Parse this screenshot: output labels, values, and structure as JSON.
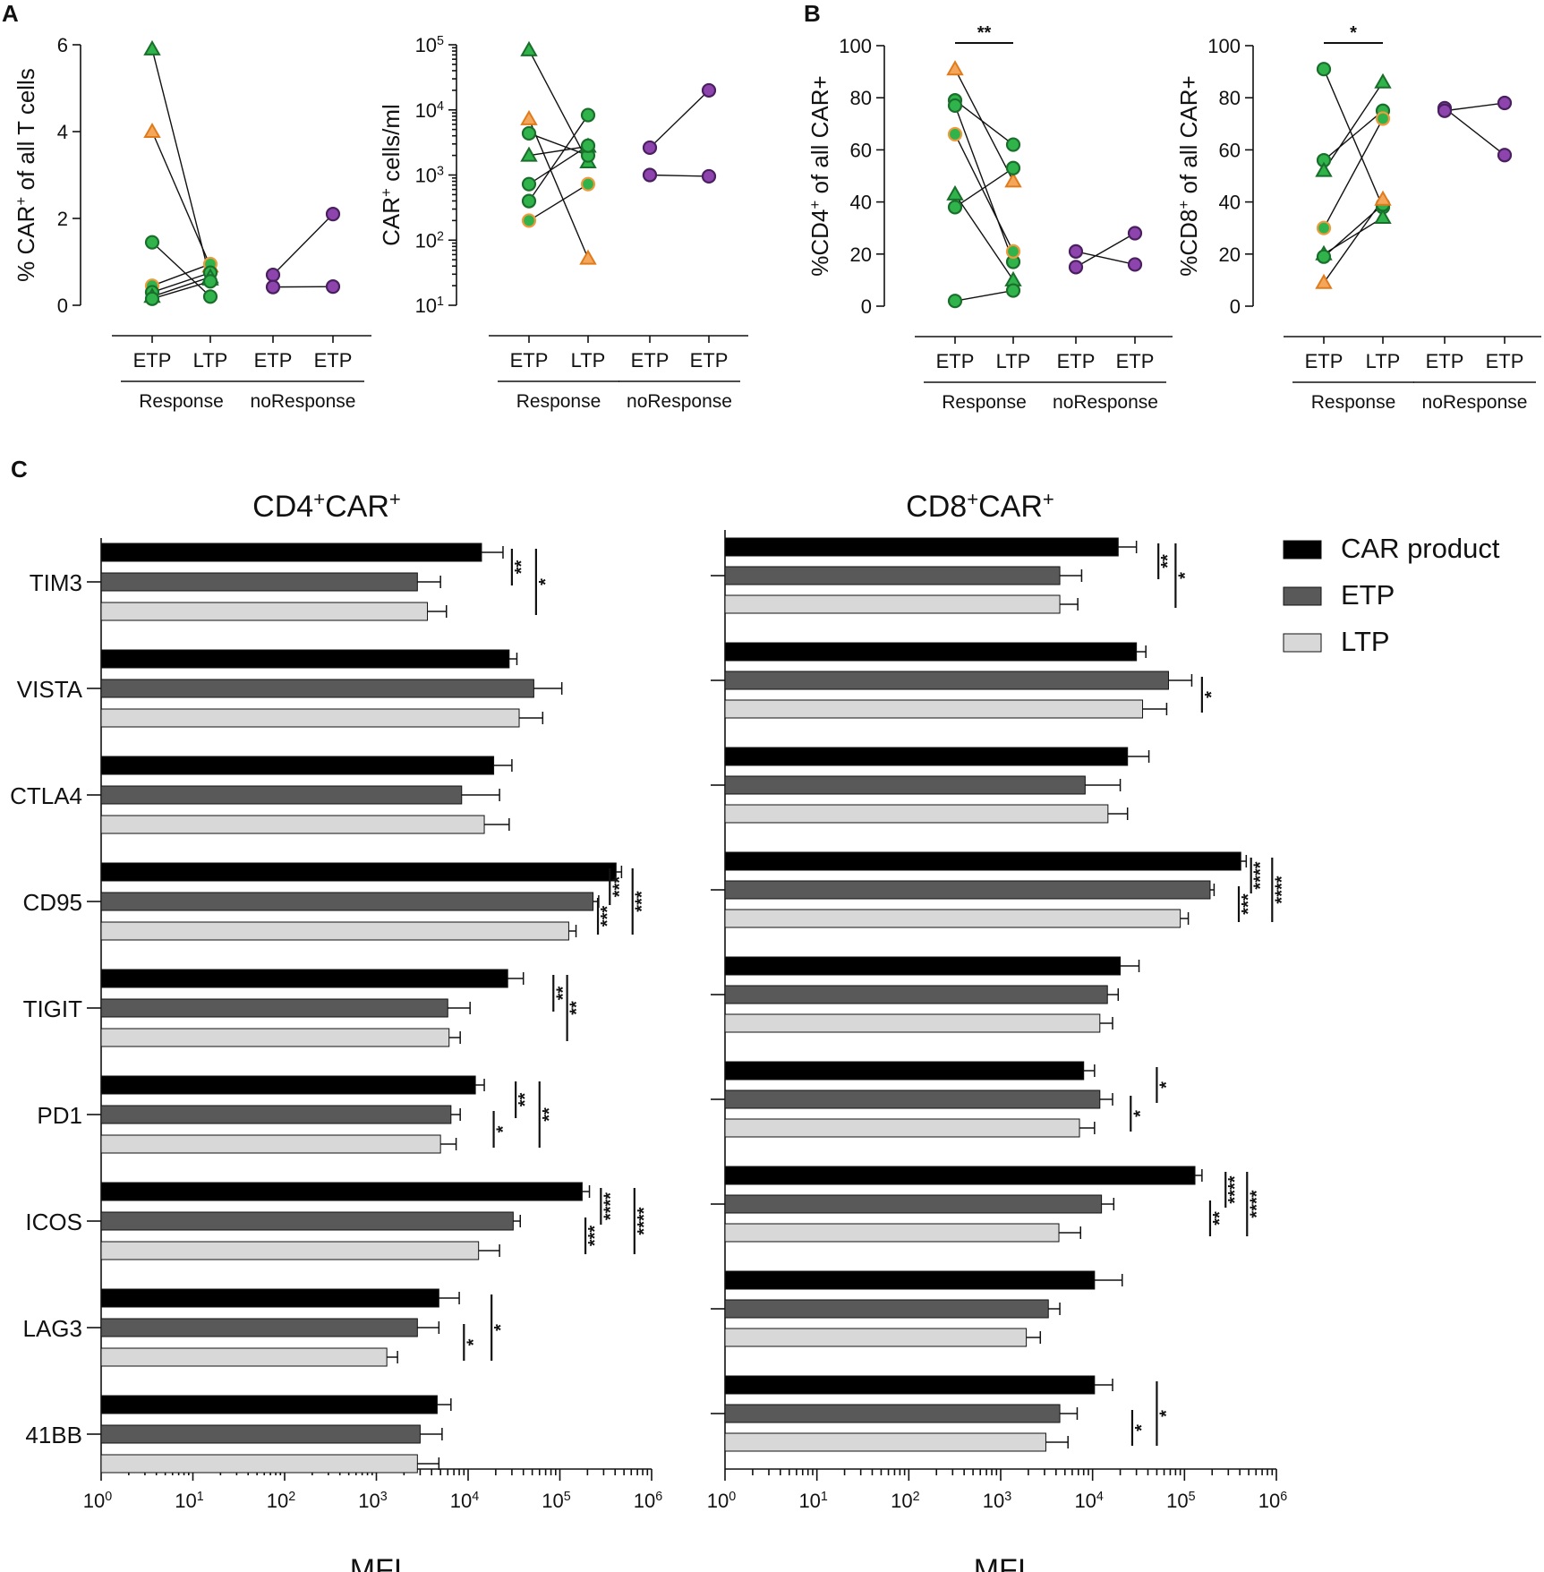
{
  "panels": {
    "a": "A",
    "b": "B",
    "c": "C"
  },
  "chart_data": [
    {
      "type": "scatter",
      "id": "A1",
      "ylabel": "% CAR+ of all T cells",
      "ylabel_parts": [
        "% CAR",
        "+",
        " of all T cells"
      ],
      "ylim": [
        0,
        6
      ],
      "yticks": [
        0,
        2,
        4,
        6
      ],
      "yscale": "linear",
      "categories": [
        "ETP",
        "LTP",
        "ETP",
        "ETP"
      ],
      "groups": [
        {
          "name": "Response",
          "cats": [
            0,
            1
          ]
        },
        {
          "name": "noResponse",
          "cats": [
            2,
            3
          ]
        }
      ],
      "pairs": [
        {
          "cats": [
            0,
            1
          ],
          "values": [
            5.9,
            0.6
          ],
          "marker": "triangle",
          "fill": "#2fb34a",
          "edge": "#1a6e2b"
        },
        {
          "cats": [
            0,
            1
          ],
          "values": [
            4.0,
            0.9
          ],
          "marker": "triangle",
          "fill": "#f4a65a",
          "edge": "#e07b1c"
        },
        {
          "cats": [
            0,
            1
          ],
          "values": [
            1.45,
            0.2
          ],
          "marker": "circle",
          "fill": "#2fb34a",
          "edge": "#1a6e2b"
        },
        {
          "cats": [
            0,
            1
          ],
          "values": [
            0.45,
            0.95
          ],
          "marker": "circle",
          "fill": "#2fb34a",
          "edge": "#f09a3e"
        },
        {
          "cats": [
            0,
            1
          ],
          "values": [
            0.3,
            0.75
          ],
          "marker": "circle",
          "fill": "#2fb34a",
          "edge": "#1a6e2b"
        },
        {
          "cats": [
            0,
            1
          ],
          "values": [
            0.2,
            0.65
          ],
          "marker": "triangle",
          "fill": "#2fb34a",
          "edge": "#1a6e2b"
        },
        {
          "cats": [
            0,
            1
          ],
          "values": [
            0.15,
            0.55
          ],
          "marker": "circle",
          "fill": "#2fb34a",
          "edge": "#1a6e2b"
        },
        {
          "cats": [
            2,
            3
          ],
          "values": [
            0.7,
            2.1
          ],
          "marker": "circle",
          "fill": "#8e44ad",
          "edge": "#4a1f60"
        },
        {
          "cats": [
            2,
            3
          ],
          "values": [
            0.42,
            0.43
          ],
          "marker": "circle",
          "fill": "#8e44ad",
          "edge": "#4a1f60"
        }
      ],
      "significance": []
    },
    {
      "type": "scatter",
      "id": "A2",
      "ylabel": "CAR+ cells/ml",
      "ylabel_parts": [
        "CAR",
        "+",
        " cells/ml"
      ],
      "ylim": [
        1,
        5
      ],
      "yticks": [
        1,
        2,
        3,
        4,
        5
      ],
      "yscale": "log10",
      "ytick_base": "10",
      "categories": [
        "ETP",
        "LTP",
        "ETP",
        "ETP"
      ],
      "groups": [
        {
          "name": "Response",
          "cats": [
            0,
            1
          ]
        },
        {
          "name": "noResponse",
          "cats": [
            2,
            3
          ]
        }
      ],
      "pairs": [
        {
          "cats": [
            0,
            1
          ],
          "values": [
            4.92,
            3.2
          ],
          "marker": "triangle",
          "fill": "#2fb34a",
          "edge": "#1a6e2b"
        },
        {
          "cats": [
            0,
            1
          ],
          "values": [
            3.86,
            1.72
          ],
          "marker": "triangle",
          "fill": "#f4a65a",
          "edge": "#e07b1c"
        },
        {
          "cats": [
            0,
            1
          ],
          "values": [
            3.64,
            3.3
          ],
          "marker": "circle",
          "fill": "#2fb34a",
          "edge": "#1a6e2b"
        },
        {
          "cats": [
            0,
            1
          ],
          "values": [
            3.3,
            3.44
          ],
          "marker": "triangle",
          "fill": "#2fb34a",
          "edge": "#1a6e2b"
        },
        {
          "cats": [
            0,
            1
          ],
          "values": [
            2.86,
            3.45
          ],
          "marker": "circle",
          "fill": "#2fb34a",
          "edge": "#1a6e2b"
        },
        {
          "cats": [
            0,
            1
          ],
          "values": [
            2.6,
            3.92
          ],
          "marker": "circle",
          "fill": "#2fb34a",
          "edge": "#1a6e2b"
        },
        {
          "cats": [
            0,
            1
          ],
          "values": [
            2.3,
            2.86
          ],
          "marker": "circle",
          "fill": "#2fb34a",
          "edge": "#f09a3e"
        },
        {
          "cats": [
            2,
            3
          ],
          "values": [
            3.42,
            4.3
          ],
          "marker": "circle",
          "fill": "#8e44ad",
          "edge": "#4a1f60"
        },
        {
          "cats": [
            2,
            3
          ],
          "values": [
            3.0,
            2.98
          ],
          "marker": "circle",
          "fill": "#8e44ad",
          "edge": "#4a1f60"
        }
      ],
      "significance": []
    },
    {
      "type": "scatter",
      "id": "B1",
      "ylabel": "%CD4+ of all CAR+",
      "ylabel_parts": [
        "%CD4",
        "+",
        " of all CAR+"
      ],
      "ylim": [
        0,
        100
      ],
      "yticks": [
        0,
        20,
        40,
        60,
        80,
        100
      ],
      "yscale": "linear",
      "categories": [
        "ETP",
        "LTP",
        "ETP",
        "ETP"
      ],
      "groups": [
        {
          "name": "Response",
          "cats": [
            0,
            1
          ]
        },
        {
          "name": "noResponse",
          "cats": [
            2,
            3
          ]
        }
      ],
      "pairs": [
        {
          "cats": [
            0,
            1
          ],
          "values": [
            91,
            48
          ],
          "marker": "triangle",
          "fill": "#f4a65a",
          "edge": "#e07b1c"
        },
        {
          "cats": [
            0,
            1
          ],
          "values": [
            79,
            62
          ],
          "marker": "circle",
          "fill": "#2fb34a",
          "edge": "#1a6e2b"
        },
        {
          "cats": [
            0,
            1
          ],
          "values": [
            77,
            17
          ],
          "marker": "circle",
          "fill": "#2fb34a",
          "edge": "#1a6e2b"
        },
        {
          "cats": [
            0,
            1
          ],
          "values": [
            66,
            21
          ],
          "marker": "circle",
          "fill": "#2fb34a",
          "edge": "#f09a3e"
        },
        {
          "cats": [
            0,
            1
          ],
          "values": [
            43,
            10
          ],
          "marker": "triangle",
          "fill": "#2fb34a",
          "edge": "#1a6e2b"
        },
        {
          "cats": [
            0,
            1
          ],
          "values": [
            38,
            53
          ],
          "marker": "circle",
          "fill": "#2fb34a",
          "edge": "#1a6e2b"
        },
        {
          "cats": [
            0,
            1
          ],
          "values": [
            2,
            6
          ],
          "marker": "circle",
          "fill": "#2fb34a",
          "edge": "#1a6e2b"
        },
        {
          "cats": [
            2,
            3
          ],
          "values": [
            21,
            16
          ],
          "marker": "circle",
          "fill": "#8e44ad",
          "edge": "#4a1f60"
        },
        {
          "cats": [
            2,
            3
          ],
          "values": [
            15,
            28
          ],
          "marker": "circle",
          "fill": "#8e44ad",
          "edge": "#4a1f60"
        }
      ],
      "significance": [
        {
          "cats": [
            0,
            1
          ],
          "label": "**"
        }
      ]
    },
    {
      "type": "scatter",
      "id": "B2",
      "ylabel": "%CD8+ of all CAR+",
      "ylabel_parts": [
        "%CD8",
        "+",
        " of all CAR+"
      ],
      "ylim": [
        0,
        100
      ],
      "yticks": [
        0,
        20,
        40,
        60,
        80,
        100
      ],
      "yscale": "linear",
      "categories": [
        "ETP",
        "LTP",
        "ETP",
        "ETP"
      ],
      "groups": [
        {
          "name": "Response",
          "cats": [
            0,
            1
          ]
        },
        {
          "name": "noResponse",
          "cats": [
            2,
            3
          ]
        }
      ],
      "pairs": [
        {
          "cats": [
            0,
            1
          ],
          "values": [
            91,
            38
          ],
          "marker": "circle",
          "fill": "#2fb34a",
          "edge": "#1a6e2b"
        },
        {
          "cats": [
            0,
            1
          ],
          "values": [
            56,
            75
          ],
          "marker": "circle",
          "fill": "#2fb34a",
          "edge": "#1a6e2b"
        },
        {
          "cats": [
            0,
            1
          ],
          "values": [
            52,
            86
          ],
          "marker": "triangle",
          "fill": "#2fb34a",
          "edge": "#1a6e2b"
        },
        {
          "cats": [
            0,
            1
          ],
          "values": [
            30,
            72
          ],
          "marker": "circle",
          "fill": "#2fb34a",
          "edge": "#f09a3e"
        },
        {
          "cats": [
            0,
            1
          ],
          "values": [
            20,
            34
          ],
          "marker": "triangle",
          "fill": "#2fb34a",
          "edge": "#1a6e2b"
        },
        {
          "cats": [
            0,
            1
          ],
          "values": [
            19,
            39
          ],
          "marker": "circle",
          "fill": "#2fb34a",
          "edge": "#1a6e2b"
        },
        {
          "cats": [
            0,
            1
          ],
          "values": [
            9,
            41
          ],
          "marker": "triangle",
          "fill": "#f4a65a",
          "edge": "#e07b1c"
        },
        {
          "cats": [
            2,
            3
          ],
          "values": [
            76,
            58
          ],
          "marker": "circle",
          "fill": "#8e44ad",
          "edge": "#4a1f60"
        },
        {
          "cats": [
            2,
            3
          ],
          "values": [
            75,
            78
          ],
          "marker": "circle",
          "fill": "#8e44ad",
          "edge": "#4a1f60"
        }
      ],
      "significance": [
        {
          "cats": [
            0,
            1
          ],
          "label": "*"
        }
      ]
    },
    {
      "type": "bar",
      "orientation": "horizontal",
      "id": "C1",
      "title": "CD4+CAR+",
      "title_parts": [
        "CD4",
        "+",
        "CAR",
        "+"
      ],
      "xlabel": "MFI",
      "xscale": "log10",
      "xlim": [
        0,
        6
      ],
      "xticks": [
        0,
        1,
        2,
        3,
        4,
        5,
        6
      ],
      "xtick_base": "10",
      "categories": [
        "TIM3",
        "VISTA",
        "CTLA4",
        "CD95",
        "TIGIT",
        "PD1",
        "ICOS",
        "LAG3",
        "41BB"
      ],
      "series": [
        {
          "name": "CAR product",
          "color": "#000000",
          "values": [
            14000,
            28000,
            19000,
            410000,
            27000,
            12000,
            175000,
            4800,
            4600
          ],
          "errors": [
            24000,
            34000,
            30000,
            470000,
            40000,
            15000,
            210000,
            8000,
            6500
          ]
        },
        {
          "name": "ETP",
          "color": "#595959",
          "values": [
            2800,
            52000,
            8500,
            230000,
            6000,
            6500,
            31000,
            2800,
            3000
          ],
          "errors": [
            5000,
            105000,
            22000,
            265000,
            10500,
            8200,
            37000,
            4800,
            5200
          ]
        },
        {
          "name": "LTP",
          "color": "#d8d8d8",
          "values": [
            3600,
            36000,
            15000,
            125000,
            6200,
            5000,
            13000,
            1300,
            2800
          ],
          "errors": [
            5800,
            65000,
            28000,
            150000,
            8200,
            7400,
            22000,
            1700,
            4800
          ]
        }
      ],
      "significance": [
        {
          "row": 0,
          "from": 0,
          "to": 1,
          "label": "**",
          "pos": 30000
        },
        {
          "row": 0,
          "from": 0,
          "to": 2,
          "label": "*",
          "pos": 55000
        },
        {
          "row": 3,
          "from": 0,
          "to": 1,
          "label": "***",
          "pos": 350000
        },
        {
          "row": 3,
          "from": 1,
          "to": 2,
          "label": "***",
          "pos": 260000
        },
        {
          "row": 3,
          "from": 0,
          "to": 2,
          "label": "***",
          "pos": 620000
        },
        {
          "row": 4,
          "from": 0,
          "to": 1,
          "label": "**",
          "pos": 85000
        },
        {
          "row": 4,
          "from": 0,
          "to": 2,
          "label": "**",
          "pos": 120000
        },
        {
          "row": 5,
          "from": 0,
          "to": 1,
          "label": "**",
          "pos": 33000
        },
        {
          "row": 5,
          "from": 1,
          "to": 2,
          "label": "*",
          "pos": 19000
        },
        {
          "row": 5,
          "from": 0,
          "to": 2,
          "label": "**",
          "pos": 60000
        },
        {
          "row": 6,
          "from": 0,
          "to": 1,
          "label": "****",
          "pos": 280000
        },
        {
          "row": 6,
          "from": 1,
          "to": 2,
          "label": "***",
          "pos": 190000
        },
        {
          "row": 6,
          "from": 0,
          "to": 2,
          "label": "****",
          "pos": 650000
        },
        {
          "row": 7,
          "from": 1,
          "to": 2,
          "label": "*",
          "pos": 9000
        },
        {
          "row": 7,
          "from": 0,
          "to": 2,
          "label": "*",
          "pos": 18000
        }
      ]
    },
    {
      "type": "bar",
      "orientation": "horizontal",
      "id": "C2",
      "title": "CD8+CAR+",
      "title_parts": [
        "CD8",
        "+",
        "CAR",
        "+"
      ],
      "xlabel": "MFI",
      "xscale": "log10",
      "xlim": [
        0,
        6
      ],
      "xticks": [
        0,
        1,
        2,
        3,
        4,
        5,
        6
      ],
      "xtick_base": "10",
      "categories": [
        "TIM3",
        "VISTA",
        "CTLA4",
        "CD95",
        "TIGIT",
        "PD1",
        "ICOS",
        "LAG3",
        "41BB"
      ],
      "series": [
        {
          "name": "CAR product",
          "color": "#000000",
          "values": [
            19000,
            30000,
            24000,
            410000,
            20000,
            8000,
            130000,
            10500,
            10500
          ],
          "errors": [
            30000,
            38000,
            41000,
            470000,
            32000,
            10500,
            155000,
            21000,
            16500
          ]
        },
        {
          "name": "ETP",
          "color": "#595959",
          "values": [
            4400,
            67000,
            8300,
            190000,
            14500,
            12000,
            12500,
            3300,
            4400
          ],
          "errors": [
            7600,
            120000,
            20000,
            210000,
            19000,
            16500,
            17000,
            4400,
            6800
          ]
        },
        {
          "name": "LTP",
          "color": "#d8d8d8",
          "values": [
            4400,
            35000,
            14700,
            90000,
            12000,
            7200,
            4300,
            1900,
            3100
          ],
          "errors": [
            6900,
            64000,
            24000,
            110000,
            16500,
            10500,
            7400,
            2700,
            5400
          ]
        }
      ],
      "significance": [
        {
          "row": 0,
          "from": 0,
          "to": 1,
          "label": "**",
          "pos": 52000
        },
        {
          "row": 0,
          "from": 0,
          "to": 2,
          "label": "*",
          "pos": 80000
        },
        {
          "row": 1,
          "from": 1,
          "to": 2,
          "label": "*",
          "pos": 155000
        },
        {
          "row": 3,
          "from": 0,
          "to": 1,
          "label": "****",
          "pos": 530000
        },
        {
          "row": 3,
          "from": 1,
          "to": 2,
          "label": "***",
          "pos": 390000
        },
        {
          "row": 3,
          "from": 0,
          "to": 2,
          "label": "****",
          "pos": 900000
        },
        {
          "row": 5,
          "from": 0,
          "to": 1,
          "label": "*",
          "pos": 50000
        },
        {
          "row": 5,
          "from": 1,
          "to": 2,
          "label": "*",
          "pos": 26000
        },
        {
          "row": 6,
          "from": 0,
          "to": 1,
          "label": "****",
          "pos": 280000
        },
        {
          "row": 6,
          "from": 1,
          "to": 2,
          "label": "**",
          "pos": 190000
        },
        {
          "row": 6,
          "from": 0,
          "to": 2,
          "label": "****",
          "pos": 480000
        },
        {
          "row": 8,
          "from": 1,
          "to": 2,
          "label": "*",
          "pos": 27000
        },
        {
          "row": 8,
          "from": 0,
          "to": 2,
          "label": "*",
          "pos": 50000
        }
      ]
    }
  ],
  "legend": [
    {
      "label": "CAR product",
      "color": "#000000"
    },
    {
      "label": "ETP",
      "color": "#595959"
    },
    {
      "label": "LTP",
      "color": "#d8d8d8"
    }
  ]
}
